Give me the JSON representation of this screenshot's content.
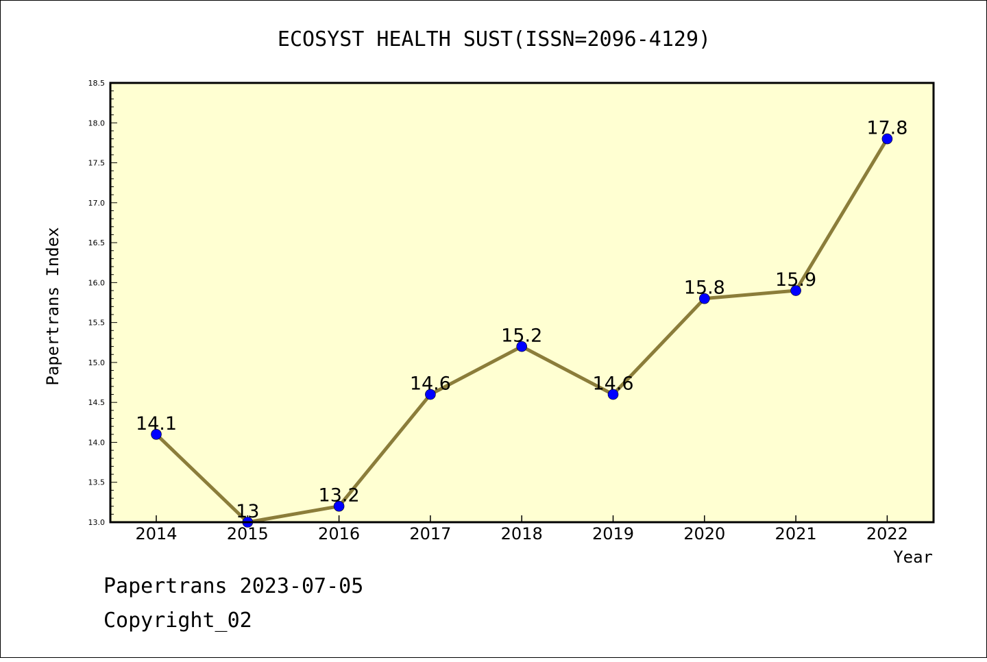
{
  "chart_data": {
    "type": "line",
    "title": "ECOSYST HEALTH SUST(ISSN=2096-4129)",
    "xlabel": "Year",
    "ylabel": "Papertrans Index",
    "categories": [
      "2014",
      "2015",
      "2016",
      "2017",
      "2018",
      "2019",
      "2020",
      "2021",
      "2022"
    ],
    "series": [
      {
        "values": [
          14.1,
          13.0,
          13.2,
          14.6,
          15.2,
          14.6,
          15.8,
          15.9,
          17.8
        ],
        "labels": [
          "14.1",
          "13",
          "13.2",
          "14.6",
          "15.2",
          "14.6",
          "15.8",
          "15.9",
          "17.8"
        ]
      }
    ],
    "ylim": [
      13.0,
      18.5
    ],
    "yticks": [
      "13.0",
      "13.5",
      "14.0",
      "14.5",
      "15.0",
      "15.5",
      "16.0",
      "16.5",
      "17.0",
      "17.5",
      "18.0",
      "18.5"
    ],
    "grid": false,
    "legend": "none"
  },
  "footer": {
    "line1": "Papertrans 2023-07-05",
    "line2": "Copyright_02"
  },
  "colors": {
    "plot_background": "#ffffd2",
    "line": "#8b7d3a",
    "marker": "#0000ff",
    "frame": "#000000"
  }
}
